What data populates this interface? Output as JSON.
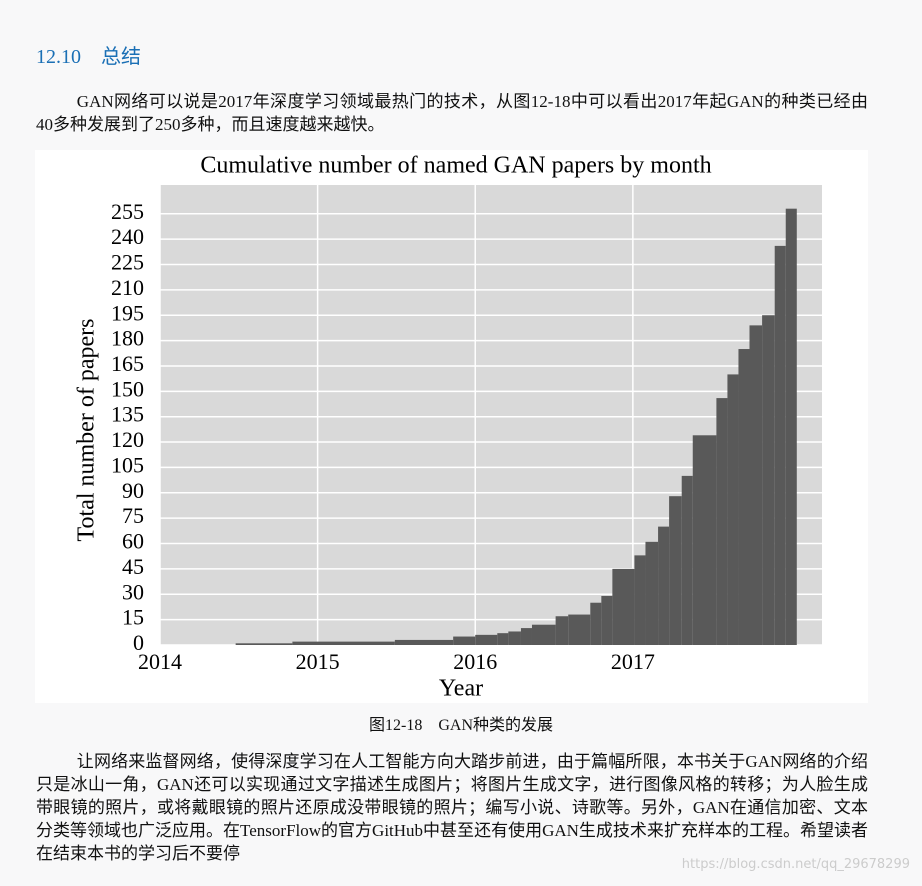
{
  "section": {
    "number": "12.10",
    "title": "总结"
  },
  "paragraphs": [
    "GAN网络可以说是2017年深度学习领域最热门的技术，从图12-18中可以看出2017年起GAN的种类已经由40多种发展到了250多种，而且速度越来越快。",
    "让网络来监督网络，使得深度学习在人工智能方向大踏步前进，由于篇幅所限，本书关于GAN网络的介绍只是冰山一角，GAN还可以实现通过文字描述生成图片；将图片生成文字，进行图像风格的转移；为人脸生成带眼镜的照片，或将戴眼镜的照片还原成没带眼镜的照片；编写小说、诗歌等。另外，GAN在通信加密、文本分类等领域也广泛应用。在TensorFlow的官方GitHub中甚至还有使用GAN生成技术来扩充样本的工程。希望读者在结束本书的学习后不要停"
  ],
  "caption": "图12-18　GAN种类的发展",
  "watermark": "https://blog.csdn.net/qq_29678299",
  "chart_data": {
    "type": "histogram",
    "title": "Cumulative number of named GAN papers by month",
    "xlabel": "Year",
    "ylabel": "Total number of papers",
    "bins": [
      2014.48,
      2014.84,
      2015.49,
      2015.86,
      2016.0,
      2016.14,
      2016.21,
      2016.29,
      2016.36,
      2016.51,
      2016.59,
      2016.73,
      2016.8,
      2016.87,
      2017.01,
      2017.08,
      2017.16,
      2017.23,
      2017.31,
      2017.38,
      2017.53,
      2017.6,
      2017.67,
      2017.74,
      2017.82,
      2017.9,
      2017.97,
      2018.04
    ],
    "counts": [
      1,
      2,
      3,
      5,
      6,
      7,
      8,
      10,
      12,
      17,
      18,
      25,
      29,
      45,
      53,
      61,
      70,
      88,
      100,
      124,
      146,
      160,
      175,
      189,
      195,
      236,
      258
    ],
    "color": "#595959",
    "xlim": [
      2014,
      2018.2
    ],
    "xticks": [
      2014,
      2015,
      2016,
      2017
    ],
    "ylim": [
      0,
      272
    ],
    "yticks": [
      0,
      15,
      30,
      45,
      60,
      75,
      90,
      105,
      120,
      135,
      150,
      165,
      180,
      195,
      210,
      225,
      240,
      255
    ],
    "grid": true
  }
}
